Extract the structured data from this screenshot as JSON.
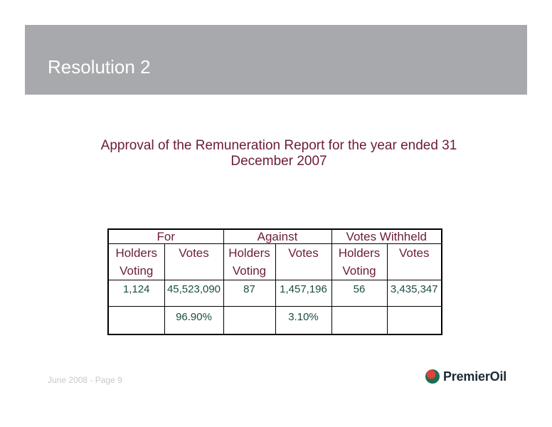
{
  "header": {
    "title": "Resolution 2"
  },
  "subtitle": {
    "line1": "Approval of the Remuneration Report for the year ended 31",
    "line2": "December 2007"
  },
  "table": {
    "groups": [
      "For",
      "Against",
      "Votes Withheld"
    ],
    "subheaders": [
      {
        "line1": "Holders",
        "line2": "Voting"
      },
      {
        "line1": "Votes",
        "line2": ""
      },
      {
        "line1": "Holders",
        "line2": "Voting"
      },
      {
        "line1": "Votes",
        "line2": ""
      },
      {
        "line1": "Holders",
        "line2": "Voting"
      },
      {
        "line1": "Votes",
        "line2": ""
      }
    ],
    "counts": [
      "1,124",
      "45,523,090",
      "87",
      "1,457,196",
      "56",
      "3,435,347"
    ],
    "percentages": [
      "",
      "96.90%",
      "",
      "3.10%",
      "",
      ""
    ]
  },
  "footer": {
    "text": "June 2008 - Page 9"
  },
  "logo": {
    "text": "PremierOil",
    "icon": "premier-oil-logo-icon"
  },
  "colors": {
    "title_bar": "#a8a9ad",
    "text_maroon": "#6b1d33",
    "number_teal": "#1a4d44"
  }
}
